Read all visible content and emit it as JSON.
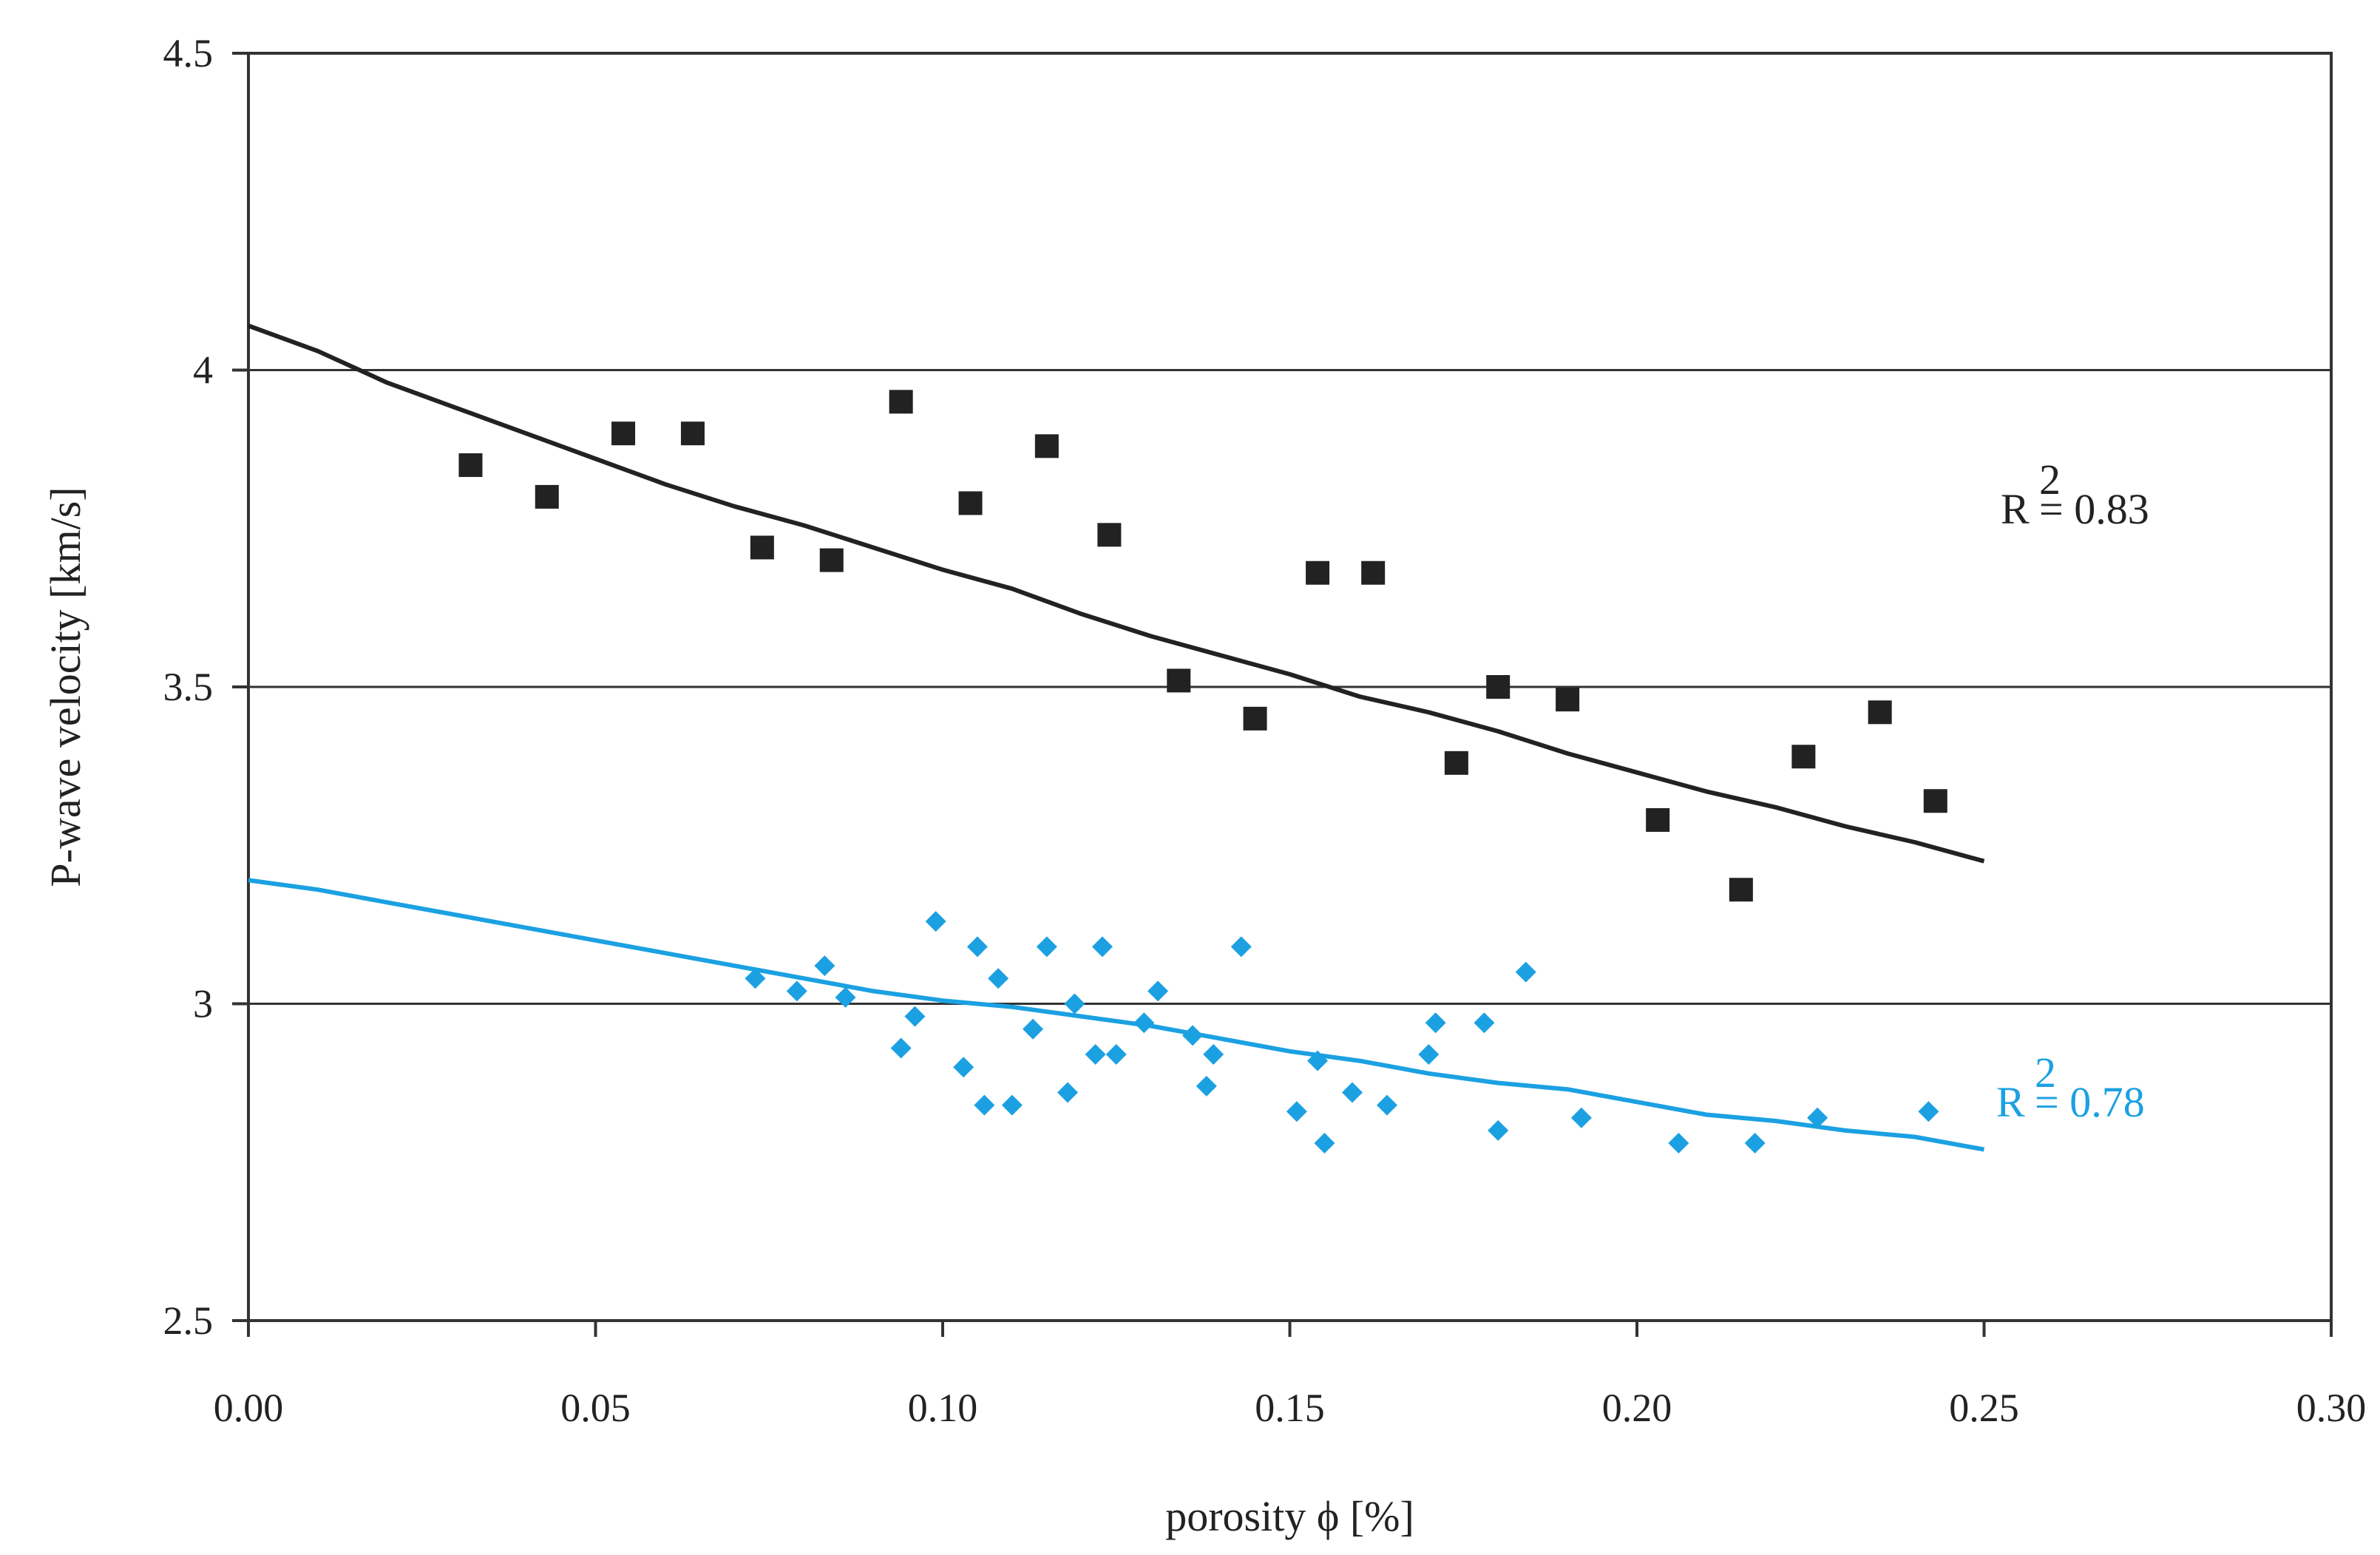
{
  "chart_data": {
    "type": "scatter",
    "title": "",
    "xlabel": "porosity ϕ [%]",
    "ylabel": "P-wave velocity [km/s]",
    "xlim": [
      0.0,
      0.3
    ],
    "ylim": [
      2.5,
      4.5
    ],
    "x_ticks": [
      "0.00",
      "0.05",
      "0.10",
      "0.15",
      "0.20",
      "0.25",
      "0.30"
    ],
    "y_ticks": [
      "2.5",
      "3",
      "3.5",
      "4",
      "4.5"
    ],
    "grid": "horizontal",
    "colors": {
      "dark": "#222222",
      "blue": "#1ba1e2",
      "grid": "#333333"
    },
    "series": [
      {
        "name": "dark-squares",
        "marker": "square",
        "color": "#222222",
        "points": [
          [
            0.032,
            3.85
          ],
          [
            0.043,
            3.8
          ],
          [
            0.054,
            3.9
          ],
          [
            0.064,
            3.9
          ],
          [
            0.074,
            3.72
          ],
          [
            0.084,
            3.7
          ],
          [
            0.094,
            3.95
          ],
          [
            0.104,
            3.79
          ],
          [
            0.115,
            3.88
          ],
          [
            0.124,
            3.74
          ],
          [
            0.134,
            3.51
          ],
          [
            0.145,
            3.45
          ],
          [
            0.154,
            3.68
          ],
          [
            0.162,
            3.68
          ],
          [
            0.174,
            3.38
          ],
          [
            0.18,
            3.5
          ],
          [
            0.19,
            3.48
          ],
          [
            0.203,
            3.29
          ],
          [
            0.215,
            3.18
          ],
          [
            0.224,
            3.39
          ],
          [
            0.235,
            3.46
          ],
          [
            0.243,
            3.32
          ]
        ],
        "trend": [
          [
            0.0,
            4.07
          ],
          [
            0.01,
            4.03
          ],
          [
            0.02,
            3.98
          ],
          [
            0.03,
            3.94
          ],
          [
            0.04,
            3.9
          ],
          [
            0.05,
            3.86
          ],
          [
            0.06,
            3.82
          ],
          [
            0.07,
            3.785
          ],
          [
            0.08,
            3.755
          ],
          [
            0.09,
            3.72
          ],
          [
            0.1,
            3.685
          ],
          [
            0.11,
            3.655
          ],
          [
            0.12,
            3.615
          ],
          [
            0.13,
            3.58
          ],
          [
            0.14,
            3.55
          ],
          [
            0.15,
            3.52
          ],
          [
            0.16,
            3.485
          ],
          [
            0.17,
            3.46
          ],
          [
            0.18,
            3.43
          ],
          [
            0.19,
            3.395
          ],
          [
            0.2,
            3.365
          ],
          [
            0.21,
            3.335
          ],
          [
            0.22,
            3.31
          ],
          [
            0.23,
            3.28
          ],
          [
            0.24,
            3.255
          ],
          [
            0.25,
            3.225
          ]
        ],
        "r2_label": "R",
        "r2_sup": "2",
        "r2_value": "= 0.83"
      },
      {
        "name": "blue-diamonds",
        "marker": "diamond",
        "color": "#1ba1e2",
        "points": [
          [
            0.073,
            3.04
          ],
          [
            0.079,
            3.02
          ],
          [
            0.083,
            3.06
          ],
          [
            0.086,
            3.01
          ],
          [
            0.094,
            2.93
          ],
          [
            0.096,
            2.98
          ],
          [
            0.099,
            3.13
          ],
          [
            0.103,
            2.9
          ],
          [
            0.105,
            3.09
          ],
          [
            0.106,
            2.84
          ],
          [
            0.108,
            3.04
          ],
          [
            0.11,
            2.84
          ],
          [
            0.113,
            2.96
          ],
          [
            0.115,
            3.09
          ],
          [
            0.118,
            2.86
          ],
          [
            0.119,
            3.0
          ],
          [
            0.122,
            2.92
          ],
          [
            0.123,
            3.09
          ],
          [
            0.125,
            2.92
          ],
          [
            0.129,
            2.97
          ],
          [
            0.131,
            3.02
          ],
          [
            0.136,
            2.95
          ],
          [
            0.138,
            2.87
          ],
          [
            0.139,
            2.92
          ],
          [
            0.143,
            3.09
          ],
          [
            0.151,
            2.83
          ],
          [
            0.154,
            2.91
          ],
          [
            0.155,
            2.78
          ],
          [
            0.159,
            2.86
          ],
          [
            0.164,
            2.84
          ],
          [
            0.17,
            2.92
          ],
          [
            0.171,
            2.97
          ],
          [
            0.178,
            2.97
          ],
          [
            0.18,
            2.8
          ],
          [
            0.184,
            3.05
          ],
          [
            0.192,
            2.82
          ],
          [
            0.206,
            2.78
          ],
          [
            0.217,
            2.78
          ],
          [
            0.226,
            2.82
          ],
          [
            0.242,
            2.83
          ]
        ],
        "trend": [
          [
            0.0,
            3.195
          ],
          [
            0.01,
            3.18
          ],
          [
            0.02,
            3.16
          ],
          [
            0.03,
            3.14
          ],
          [
            0.04,
            3.12
          ],
          [
            0.05,
            3.1
          ],
          [
            0.06,
            3.08
          ],
          [
            0.07,
            3.06
          ],
          [
            0.08,
            3.04
          ],
          [
            0.09,
            3.02
          ],
          [
            0.1,
            3.005
          ],
          [
            0.11,
            2.995
          ],
          [
            0.12,
            2.98
          ],
          [
            0.13,
            2.965
          ],
          [
            0.14,
            2.945
          ],
          [
            0.15,
            2.925
          ],
          [
            0.16,
            2.91
          ],
          [
            0.17,
            2.89
          ],
          [
            0.18,
            2.875
          ],
          [
            0.19,
            2.865
          ],
          [
            0.2,
            2.845
          ],
          [
            0.21,
            2.825
          ],
          [
            0.22,
            2.815
          ],
          [
            0.23,
            2.8
          ],
          [
            0.24,
            2.79
          ],
          [
            0.25,
            2.77
          ]
        ],
        "r2_label": "R",
        "r2_sup": "2",
        "r2_value": "= 0.78"
      }
    ]
  }
}
